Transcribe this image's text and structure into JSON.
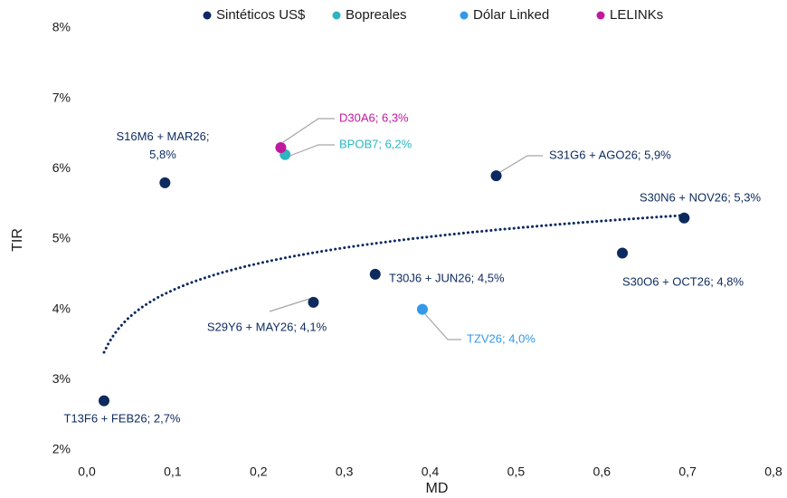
{
  "chart_data": {
    "type": "scatter",
    "xlabel": "MD",
    "ylabel": "TIR",
    "xlim": [
      0,
      0.8
    ],
    "xticks": [
      {
        "value": 0,
        "label": "0,0"
      },
      {
        "value": 0.1,
        "label": "0,1"
      },
      {
        "value": 0.2,
        "label": "0,2"
      },
      {
        "value": 0.3,
        "label": "0,3"
      },
      {
        "value": 0.4,
        "label": "0,4"
      },
      {
        "value": 0.5,
        "label": "0,5"
      },
      {
        "value": 0.6,
        "label": "0,6"
      },
      {
        "value": 0.7,
        "label": "0,7"
      },
      {
        "value": 0.8,
        "label": "0,8"
      }
    ],
    "ylim": [
      2,
      8
    ],
    "yticks": [
      {
        "value": 2,
        "label": "2%"
      },
      {
        "value": 3,
        "label": "3%"
      },
      {
        "value": 4,
        "label": "4%"
      },
      {
        "value": 5,
        "label": "5%"
      },
      {
        "value": 6,
        "label": "6%"
      },
      {
        "value": 7,
        "label": "7%"
      },
      {
        "value": 8,
        "label": "8%"
      }
    ],
    "legend": "top",
    "trendline": {
      "type": "logarithmic",
      "series": 0
    },
    "series": [
      {
        "name": "Sintéticos US$",
        "color": "#0d2a5e",
        "x": [
          0.02,
          0.091,
          0.264,
          0.336,
          0.477,
          0.624,
          0.696
        ],
        "values": [
          2.7,
          5.8,
          4.1,
          4.5,
          5.9,
          4.8,
          5.3
        ],
        "value_labels": [
          "T13F6 + FEB26; 2,7%",
          "S16M6 + MAR26; 5,8%",
          "S29Y6 + MAY26; 4,1%",
          "T30J6 + JUN26; 4,5%",
          "S31G6 + AGO26; 5,9%",
          "S30O6 + OCT26; 4,8%",
          "S30N6 + NOV26; 5,3%"
        ]
      },
      {
        "name": "Bopreales",
        "color": "#2bb6c0",
        "x": [
          0.231
        ],
        "values": [
          6.2
        ],
        "value_labels": [
          "BPOB7; 6,2%"
        ]
      },
      {
        "name": "Dólar Linked",
        "color": "#3399e8",
        "x": [
          0.391
        ],
        "values": [
          4.0
        ],
        "value_labels": [
          "TZV26; 4,0%"
        ]
      },
      {
        "name": "LELINKs",
        "color": "#c0199f",
        "x": [
          0.226
        ],
        "values": [
          6.3
        ],
        "value_labels": [
          "D30A6; 6,3%"
        ]
      }
    ]
  }
}
